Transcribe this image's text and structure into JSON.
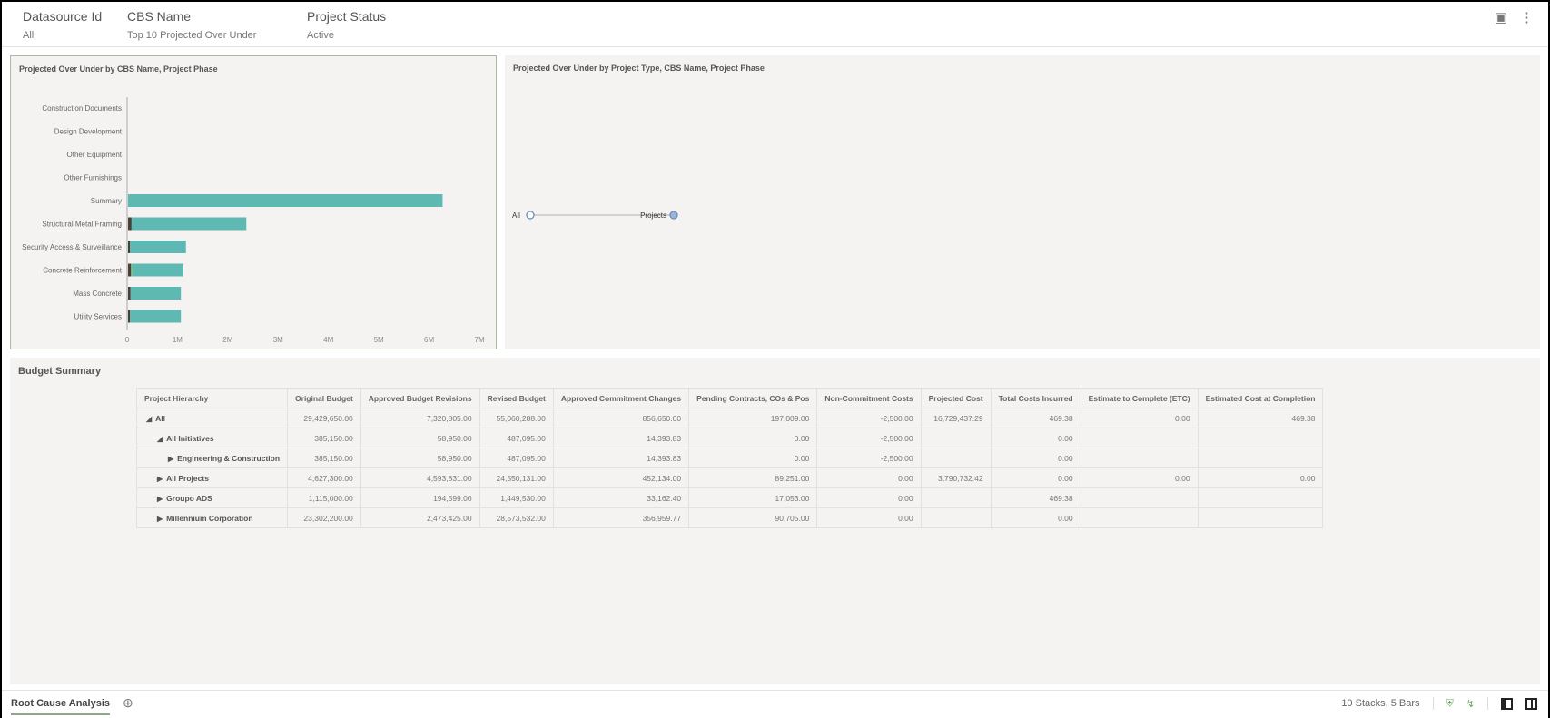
{
  "filters": [
    {
      "label": "Datasource Id",
      "value": "All"
    },
    {
      "label": "CBS Name",
      "value": "Top 10 Projected Over Under"
    },
    {
      "label": "Project Status",
      "value": "Active"
    }
  ],
  "header_icons": [
    "presentation-icon",
    "more-vertical-icon"
  ],
  "chart1": {
    "title": "Projected Over Under by CBS Name, Project Phase"
  },
  "chart_data": {
    "type": "bar",
    "orientation": "horizontal",
    "stacked": true,
    "title": "Projected Over Under by CBS Name, Project Phase",
    "categories": [
      "Construction Documents",
      "Design Development",
      "Other Equipment",
      "Other Furnishings",
      "Summary",
      "Structural Metal Framing",
      "Security Access & Surveillance",
      "Concrete Reinforcement",
      "Mass Concrete",
      "Utility Services"
    ],
    "series": [
      {
        "color": "#4a4038",
        "values": [
          0,
          0,
          0,
          0,
          0,
          70000,
          40000,
          60000,
          50000,
          40000
        ]
      },
      {
        "color": "#8fbf7a",
        "values": [
          0,
          0,
          0,
          0,
          0,
          0,
          0,
          20000,
          0,
          0
        ]
      },
      {
        "color": "#5fb9b3",
        "values": [
          0,
          0,
          0,
          0,
          6250000,
          2280000,
          1110000,
          1020000,
          1000000,
          1010000
        ]
      }
    ],
    "xlim": [
      0,
      7000000
    ],
    "xticks": [
      "0",
      "1M",
      "2M",
      "3M",
      "4M",
      "5M",
      "6M",
      "7M"
    ],
    "grid": false
  },
  "chart2": {
    "title": "Projected Over Under by Project Type, CBS Name, Project Phase",
    "nodes": [
      "All",
      "Projects"
    ]
  },
  "budget": {
    "title": "Budget Summary",
    "columns": [
      "Project Hierarchy",
      "Original Budget",
      "Approved Budget Revisions",
      "Revised Budget",
      "Approved Commitment Changes",
      "Pending Contracts, COs & Pos",
      "Non-Commitment Costs",
      "Projected Cost",
      "Total Costs Incurred",
      "Estimate to Complete (ETC)",
      "Estimated Cost at Completion"
    ],
    "rows": [
      {
        "name": "All",
        "level": 0,
        "expanded": true,
        "cells": [
          "29,429,650.00",
          "7,320,805.00",
          "55,060,288.00",
          "856,650.00",
          "197,009.00",
          "-2,500.00",
          "16,729,437.29",
          "469.38",
          "0.00",
          "469.38"
        ]
      },
      {
        "name": "All Initiatives",
        "level": 1,
        "expanded": true,
        "cells": [
          "385,150.00",
          "58,950.00",
          "487,095.00",
          "14,393.83",
          "0.00",
          "-2,500.00",
          "",
          "0.00",
          "",
          ""
        ]
      },
      {
        "name": "Engineering & Construction",
        "level": 2,
        "expanded": false,
        "cells": [
          "385,150.00",
          "58,950.00",
          "487,095.00",
          "14,393.83",
          "0.00",
          "-2,500.00",
          "",
          "0.00",
          "",
          ""
        ]
      },
      {
        "name": "All Projects",
        "level": 1,
        "expanded": false,
        "cells": [
          "4,627,300.00",
          "4,593,831.00",
          "24,550,131.00",
          "452,134.00",
          "89,251.00",
          "0.00",
          "3,790,732.42",
          "0.00",
          "0.00",
          "0.00"
        ]
      },
      {
        "name": "Groupo ADS",
        "level": 1,
        "expanded": false,
        "cells": [
          "1,115,000.00",
          "194,599.00",
          "1,449,530.00",
          "33,162.40",
          "17,053.00",
          "0.00",
          "",
          "469.38",
          "",
          ""
        ]
      },
      {
        "name": "Millennium Corporation",
        "level": 1,
        "expanded": false,
        "cells": [
          "23,302,200.00",
          "2,473,425.00",
          "28,573,532.00",
          "356,959.77",
          "90,705.00",
          "0.00",
          "",
          "0.00",
          "",
          ""
        ]
      }
    ]
  },
  "footer": {
    "tab": "Root Cause Analysis",
    "status": "10 Stacks, 5 Bars"
  }
}
